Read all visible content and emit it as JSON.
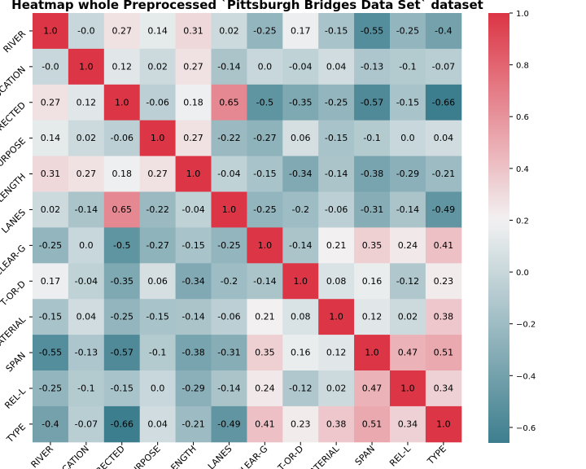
{
  "chart_data": {
    "type": "heatmap",
    "title": "Heatmap whole Preprocessed `Pittsburgh Bridges Data Set` dataset",
    "row_labels": [
      "RIVER",
      "LOCATION",
      "ERECTED",
      "PURPOSE",
      "LENGTH",
      "LANES",
      "CLEAR-G",
      "T-OR-D",
      "MATERIAL",
      "SPAN",
      "REL-L",
      "TYPE"
    ],
    "col_labels": [
      "RIVER",
      "LOCATION",
      "ERECTED",
      "PURPOSE",
      "LENGTH",
      "LANES",
      "CLEAR-G",
      "T-OR-D",
      "MATERIAL",
      "SPAN",
      "REL-L",
      "TYPE"
    ],
    "values": [
      [
        1.0,
        -0.0,
        0.27,
        0.14,
        0.31,
        0.02,
        -0.25,
        0.17,
        -0.15,
        -0.55,
        -0.25,
        -0.4
      ],
      [
        -0.0,
        1.0,
        0.12,
        0.02,
        0.27,
        -0.14,
        0.0,
        -0.04,
        0.04,
        -0.13,
        -0.1,
        -0.07
      ],
      [
        0.27,
        0.12,
        1.0,
        -0.06,
        0.18,
        0.65,
        -0.5,
        -0.35,
        -0.25,
        -0.57,
        -0.15,
        -0.66
      ],
      [
        0.14,
        0.02,
        -0.06,
        1.0,
        0.27,
        -0.22,
        -0.27,
        0.06,
        -0.15,
        -0.1,
        0.0,
        0.04
      ],
      [
        0.31,
        0.27,
        0.18,
        0.27,
        1.0,
        -0.04,
        -0.15,
        -0.34,
        -0.14,
        -0.38,
        -0.29,
        -0.21
      ],
      [
        0.02,
        -0.14,
        0.65,
        -0.22,
        -0.04,
        1.0,
        -0.25,
        -0.2,
        -0.06,
        -0.31,
        -0.14,
        -0.49
      ],
      [
        -0.25,
        0.0,
        -0.5,
        -0.27,
        -0.15,
        -0.25,
        1.0,
        -0.14,
        0.21,
        0.35,
        0.24,
        0.41
      ],
      [
        0.17,
        -0.04,
        -0.35,
        0.06,
        -0.34,
        -0.2,
        -0.14,
        1.0,
        0.08,
        0.16,
        -0.12,
        0.23
      ],
      [
        -0.15,
        0.04,
        -0.25,
        -0.15,
        -0.14,
        -0.06,
        0.21,
        0.08,
        1.0,
        0.12,
        0.02,
        0.38
      ],
      [
        -0.55,
        -0.13,
        -0.57,
        -0.1,
        -0.38,
        -0.31,
        0.35,
        0.16,
        0.12,
        1.0,
        0.47,
        0.51
      ],
      [
        -0.25,
        -0.1,
        -0.15,
        0.0,
        -0.29,
        -0.14,
        0.24,
        -0.12,
        0.02,
        0.47,
        1.0,
        0.34
      ],
      [
        -0.4,
        -0.07,
        -0.66,
        0.04,
        -0.21,
        -0.49,
        0.41,
        0.23,
        0.38,
        0.51,
        0.34,
        1.0
      ]
    ],
    "colorbar": {
      "vmin": -0.66,
      "vmax": 1.0,
      "ticks": [
        1.0,
        0.8,
        0.6,
        0.4,
        0.2,
        0.0,
        -0.2,
        -0.4,
        -0.6
      ],
      "tick_labels": [
        "1.0",
        "0.8",
        "0.6",
        "0.4",
        "0.2",
        "0.0",
        "−0.2",
        "−0.4",
        "−0.6"
      ],
      "colors": {
        "low": "#3d7e8e",
        "mid": "#f2f2f2",
        "high": "#dc3545"
      }
    },
    "grid": false
  }
}
